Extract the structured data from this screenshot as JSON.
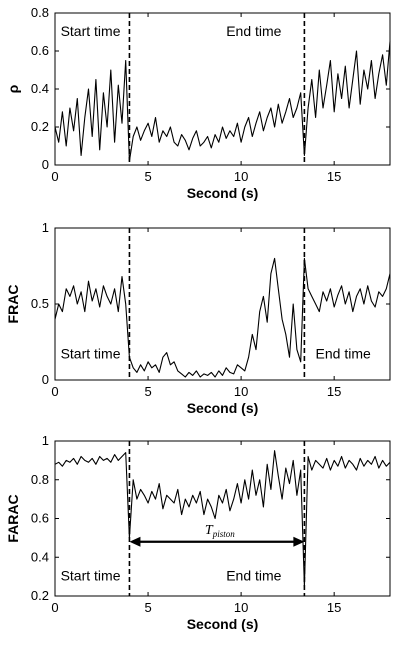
{
  "chart_data": [
    {
      "type": "line",
      "xlabel": "Second (s)",
      "ylabel": "ρ",
      "xlim": [
        0,
        18
      ],
      "ylim": [
        0,
        0.8
      ],
      "xticks": [
        "0",
        "5",
        "10",
        "15"
      ],
      "yticks": [
        "0",
        "0.2",
        "0.4",
        "0.6",
        "0.8"
      ],
      "markers": [
        4.0,
        13.4
      ],
      "annotations": [
        {
          "text": "Start time",
          "x": 0.3,
          "y": 0.68
        },
        {
          "text": "End time",
          "x": 9.2,
          "y": 0.68
        }
      ],
      "series": [
        {
          "x": [
            0.0,
            0.2,
            0.4,
            0.6,
            0.8,
            1.0,
            1.2,
            1.4,
            1.6,
            1.8,
            2.0,
            2.2,
            2.4,
            2.6,
            2.8,
            3.0,
            3.2,
            3.4,
            3.6,
            3.8,
            4.0,
            4.2,
            4.4,
            4.6,
            4.8,
            5.0,
            5.2,
            5.4,
            5.6,
            5.8,
            6.0,
            6.2,
            6.4,
            6.6,
            6.8,
            7.0,
            7.2,
            7.4,
            7.6,
            7.8,
            8.0,
            8.2,
            8.4,
            8.6,
            8.8,
            9.0,
            9.2,
            9.4,
            9.6,
            9.8,
            10.0,
            10.2,
            10.4,
            10.6,
            10.8,
            11.0,
            11.2,
            11.4,
            11.6,
            11.8,
            12.0,
            12.2,
            12.4,
            12.6,
            12.8,
            13.0,
            13.2,
            13.4,
            13.6,
            13.8,
            14.0,
            14.2,
            14.4,
            14.6,
            14.8,
            15.0,
            15.2,
            15.4,
            15.6,
            15.8,
            16.0,
            16.2,
            16.4,
            16.6,
            16.8,
            17.0,
            17.2,
            17.4,
            17.6,
            17.8,
            18.0
          ],
          "y": [
            0.2,
            0.12,
            0.28,
            0.1,
            0.3,
            0.18,
            0.35,
            0.05,
            0.25,
            0.4,
            0.15,
            0.45,
            0.08,
            0.38,
            0.2,
            0.5,
            0.12,
            0.42,
            0.22,
            0.55,
            0.02,
            0.15,
            0.2,
            0.13,
            0.18,
            0.22,
            0.15,
            0.25,
            0.12,
            0.18,
            0.15,
            0.2,
            0.12,
            0.1,
            0.16,
            0.13,
            0.08,
            0.14,
            0.18,
            0.1,
            0.12,
            0.15,
            0.09,
            0.16,
            0.12,
            0.2,
            0.14,
            0.18,
            0.15,
            0.22,
            0.12,
            0.2,
            0.25,
            0.15,
            0.22,
            0.28,
            0.18,
            0.25,
            0.3,
            0.2,
            0.32,
            0.22,
            0.28,
            0.35,
            0.25,
            0.3,
            0.38,
            0.05,
            0.3,
            0.45,
            0.25,
            0.5,
            0.3,
            0.42,
            0.55,
            0.28,
            0.48,
            0.35,
            0.52,
            0.3,
            0.45,
            0.6,
            0.32,
            0.5,
            0.4,
            0.55,
            0.35,
            0.48,
            0.58,
            0.42,
            0.65
          ]
        }
      ]
    },
    {
      "type": "line",
      "xlabel": "Second (s)",
      "ylabel": "FRAC",
      "xlim": [
        0,
        18
      ],
      "ylim": [
        0,
        1
      ],
      "xticks": [
        "0",
        "5",
        "10",
        "15"
      ],
      "yticks": [
        "0",
        "0.5",
        "1"
      ],
      "markers": [
        4.0,
        13.4
      ],
      "annotations": [
        {
          "text": "Start time",
          "x": 0.3,
          "y": 0.14
        },
        {
          "text": "End time",
          "x": 14.0,
          "y": 0.14
        }
      ],
      "series": [
        {
          "x": [
            0.0,
            0.2,
            0.4,
            0.6,
            0.8,
            1.0,
            1.2,
            1.4,
            1.6,
            1.8,
            2.0,
            2.2,
            2.4,
            2.6,
            2.8,
            3.0,
            3.2,
            3.4,
            3.6,
            3.8,
            4.0,
            4.2,
            4.4,
            4.6,
            4.8,
            5.0,
            5.2,
            5.4,
            5.6,
            5.8,
            6.0,
            6.2,
            6.4,
            6.6,
            6.8,
            7.0,
            7.2,
            7.4,
            7.6,
            7.8,
            8.0,
            8.2,
            8.4,
            8.6,
            8.8,
            9.0,
            9.2,
            9.4,
            9.6,
            9.8,
            10.0,
            10.2,
            10.4,
            10.6,
            10.8,
            11.0,
            11.2,
            11.4,
            11.6,
            11.8,
            12.0,
            12.2,
            12.4,
            12.6,
            12.8,
            13.0,
            13.2,
            13.4,
            13.6,
            13.8,
            14.0,
            14.2,
            14.4,
            14.6,
            14.8,
            15.0,
            15.2,
            15.4,
            15.6,
            15.8,
            16.0,
            16.2,
            16.4,
            16.6,
            16.8,
            17.0,
            17.2,
            17.4,
            17.6,
            17.8,
            18.0
          ],
          "y": [
            0.4,
            0.5,
            0.45,
            0.6,
            0.55,
            0.62,
            0.5,
            0.58,
            0.45,
            0.65,
            0.52,
            0.6,
            0.48,
            0.62,
            0.55,
            0.5,
            0.6,
            0.45,
            0.68,
            0.5,
            0.15,
            0.08,
            0.05,
            0.1,
            0.06,
            0.12,
            0.08,
            0.1,
            0.05,
            0.15,
            0.18,
            0.1,
            0.12,
            0.06,
            0.04,
            0.02,
            0.05,
            0.03,
            0.06,
            0.02,
            0.04,
            0.03,
            0.05,
            0.02,
            0.06,
            0.03,
            0.08,
            0.05,
            0.04,
            0.1,
            0.08,
            0.06,
            0.15,
            0.3,
            0.2,
            0.45,
            0.55,
            0.38,
            0.7,
            0.8,
            0.6,
            0.4,
            0.3,
            0.15,
            0.5,
            0.2,
            0.12,
            0.8,
            0.6,
            0.55,
            0.5,
            0.45,
            0.58,
            0.52,
            0.6,
            0.48,
            0.56,
            0.62,
            0.5,
            0.58,
            0.45,
            0.55,
            0.6,
            0.5,
            0.62,
            0.52,
            0.48,
            0.58,
            0.55,
            0.6,
            0.7
          ]
        }
      ]
    },
    {
      "type": "line",
      "xlabel": "Second (s)",
      "ylabel": "FARAC",
      "xlim": [
        0,
        18
      ],
      "ylim": [
        0.2,
        1
      ],
      "xticks": [
        "0",
        "5",
        "10",
        "15"
      ],
      "yticks": [
        "0.2",
        "0.4",
        "0.6",
        "0.8",
        "1"
      ],
      "markers": [
        4.0,
        13.4
      ],
      "interval": {
        "from": 4.0,
        "to": 13.4,
        "y": 0.48,
        "label": "T",
        "label_sub": "piston"
      },
      "annotations": [
        {
          "text": "Start time",
          "x": 0.3,
          "y": 0.28
        },
        {
          "text": "End time",
          "x": 9.2,
          "y": 0.28
        }
      ],
      "series": [
        {
          "x": [
            0.0,
            0.2,
            0.4,
            0.6,
            0.8,
            1.0,
            1.2,
            1.4,
            1.6,
            1.8,
            2.0,
            2.2,
            2.4,
            2.6,
            2.8,
            3.0,
            3.2,
            3.4,
            3.6,
            3.8,
            4.0,
            4.2,
            4.4,
            4.6,
            4.8,
            5.0,
            5.2,
            5.4,
            5.6,
            5.8,
            6.0,
            6.2,
            6.4,
            6.6,
            6.8,
            7.0,
            7.2,
            7.4,
            7.6,
            7.8,
            8.0,
            8.2,
            8.4,
            8.6,
            8.8,
            9.0,
            9.2,
            9.4,
            9.6,
            9.8,
            10.0,
            10.2,
            10.4,
            10.6,
            10.8,
            11.0,
            11.2,
            11.4,
            11.6,
            11.8,
            12.0,
            12.2,
            12.4,
            12.6,
            12.8,
            13.0,
            13.2,
            13.4,
            13.6,
            13.8,
            14.0,
            14.2,
            14.4,
            14.6,
            14.8,
            15.0,
            15.2,
            15.4,
            15.6,
            15.8,
            16.0,
            16.2,
            16.4,
            16.6,
            16.8,
            17.0,
            17.2,
            17.4,
            17.6,
            17.8,
            18.0
          ],
          "y": [
            0.88,
            0.89,
            0.87,
            0.9,
            0.89,
            0.91,
            0.88,
            0.92,
            0.9,
            0.89,
            0.91,
            0.88,
            0.92,
            0.9,
            0.91,
            0.89,
            0.93,
            0.9,
            0.92,
            0.94,
            0.5,
            0.8,
            0.7,
            0.75,
            0.72,
            0.68,
            0.74,
            0.7,
            0.78,
            0.65,
            0.72,
            0.7,
            0.68,
            0.75,
            0.62,
            0.7,
            0.66,
            0.72,
            0.68,
            0.74,
            0.62,
            0.7,
            0.66,
            0.6,
            0.72,
            0.68,
            0.75,
            0.64,
            0.7,
            0.78,
            0.68,
            0.8,
            0.7,
            0.85,
            0.72,
            0.8,
            0.66,
            0.88,
            0.75,
            0.95,
            0.82,
            0.7,
            0.86,
            0.78,
            0.9,
            0.72,
            0.85,
            0.25,
            0.92,
            0.85,
            0.9,
            0.88,
            0.86,
            0.91,
            0.85,
            0.9,
            0.87,
            0.92,
            0.86,
            0.9,
            0.88,
            0.85,
            0.91,
            0.87,
            0.9,
            0.88,
            0.92,
            0.86,
            0.9,
            0.87,
            0.89
          ]
        }
      ]
    }
  ]
}
